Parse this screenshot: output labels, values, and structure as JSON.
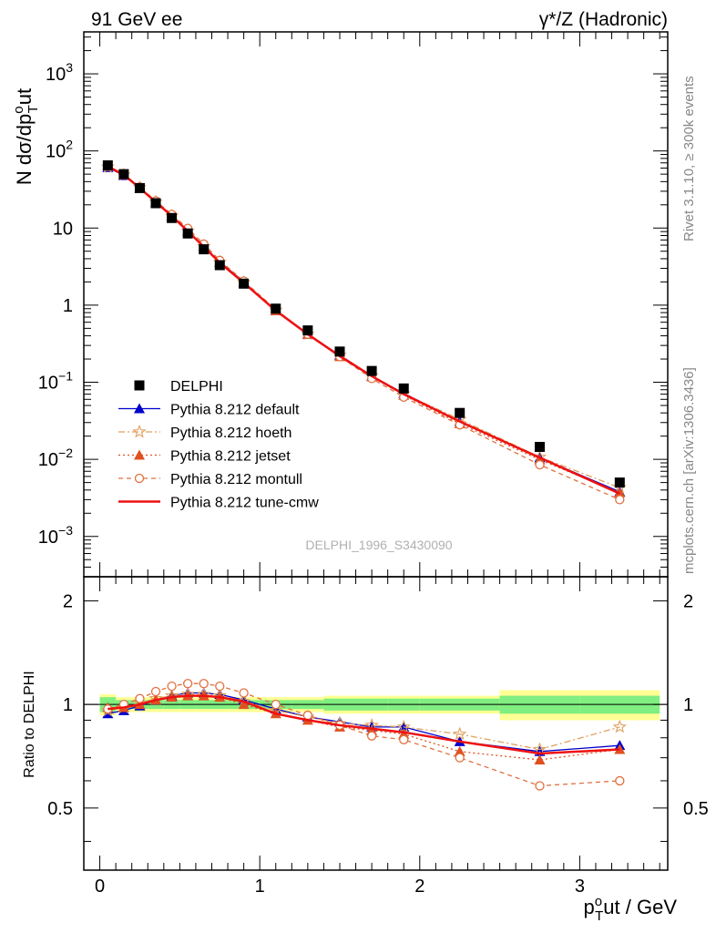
{
  "header": {
    "left": "91 GeV ee",
    "right": "γ*/Z (Hadronic)"
  },
  "side_labels": {
    "top": "Rivet 3.1.10, ≥ 300k events",
    "bottom": "mcplots.cern.ch [arXiv:1306.3436]"
  },
  "watermark": "DELPHI_1996_S3430090",
  "axes": {
    "ylabel_main": "N dσ/dp",
    "ylabel_main_sub": "T",
    "ylabel_main_sup": "o",
    "ylabel_main_tail": "ut",
    "ylabel_ratio": "Ratio to DELPHI",
    "xlabel": "p",
    "xlabel_sup": "o",
    "xlabel_sub": "T",
    "xlabel_tail": "ut / GeV",
    "x_ticks": [
      "0",
      "1",
      "2",
      "3"
    ],
    "main_y_ticks": [
      {
        "base": "10",
        "exp": "3",
        "value": 1000
      },
      {
        "base": "10",
        "exp": "2",
        "value": 100
      },
      {
        "base": "10",
        "exp": "",
        "value": 10
      },
      {
        "base": "1",
        "exp": "",
        "value": 1
      },
      {
        "base": "10",
        "exp": "−1",
        "value": 0.1
      },
      {
        "base": "10",
        "exp": "−2",
        "value": 0.01
      },
      {
        "base": "10",
        "exp": "−3",
        "value": 0.001
      }
    ],
    "ratio_y_ticks": [
      {
        "label": "2",
        "value": 2
      },
      {
        "label": "1",
        "value": 1
      },
      {
        "label": "0.5",
        "value": 0.5
      }
    ]
  },
  "legend": [
    {
      "label": "DELPHI",
      "color": "#000000",
      "style": "data"
    },
    {
      "label": "Pythia 8.212 default",
      "color": "#0000cc",
      "style": "default"
    },
    {
      "label": "Pythia 8.212 hoeth",
      "color": "#e0a060",
      "style": "hoeth"
    },
    {
      "label": "Pythia 8.212 jetset",
      "color": "#e05020",
      "style": "jetset"
    },
    {
      "label": "Pythia 8.212 montull",
      "color": "#e07040",
      "style": "montull"
    },
    {
      "label": "Pythia 8.212 tune-cmw",
      "color": "#ee1111",
      "style": "cmw"
    }
  ],
  "chart_data": {
    "type": "line",
    "title": "γ*/Z (Hadronic)",
    "xlabel": "p_T^out / GeV",
    "ylabel": "N dσ/dp_T^out",
    "xlim": [
      -0.1,
      3.55
    ],
    "ylim_main": [
      0.0003,
      3500
    ],
    "yscale_main": "log",
    "ylim_ratio": [
      0.33,
      2.35
    ],
    "yscale_ratio": "log",
    "x": [
      0.05,
      0.15,
      0.25,
      0.35,
      0.45,
      0.55,
      0.65,
      0.75,
      0.9,
      1.1,
      1.3,
      1.5,
      1.7,
      1.9,
      2.25,
      2.75,
      3.25
    ],
    "data": {
      "name": "DELPHI",
      "values": [
        65,
        50,
        33,
        21,
        13.5,
        8.5,
        5.3,
        3.3,
        1.9,
        0.9,
        0.47,
        0.25,
        0.14,
        0.083,
        0.04,
        0.0145,
        0.005
      ],
      "band_inner": [
        0.05,
        0.03,
        0.03,
        0.03,
        0.03,
        0.03,
        0.03,
        0.03,
        0.03,
        0.03,
        0.03,
        0.04,
        0.04,
        0.04,
        0.04,
        0.06,
        0.06
      ],
      "band_outer": [
        0.07,
        0.05,
        0.05,
        0.05,
        0.05,
        0.05,
        0.05,
        0.05,
        0.05,
        0.05,
        0.05,
        0.06,
        0.06,
        0.06,
        0.06,
        0.1,
        0.1
      ],
      "bin_edges": [
        0,
        0.1,
        0.2,
        0.3,
        0.4,
        0.5,
        0.6,
        0.7,
        0.8,
        1.0,
        1.2,
        1.4,
        1.6,
        1.8,
        2.0,
        2.5,
        3.0,
        3.5
      ]
    },
    "series": [
      {
        "name": "Pythia 8.212 default",
        "values": [
          61,
          48,
          33,
          21.5,
          14.2,
          9.2,
          5.8,
          3.65,
          2.0,
          0.85,
          0.42,
          0.225,
          0.12,
          0.072,
          0.031,
          0.0105,
          0.0038
        ],
        "ratio": [
          0.94,
          0.96,
          0.99,
          1.03,
          1.06,
          1.08,
          1.08,
          1.07,
          1.03,
          0.97,
          0.92,
          0.89,
          0.86,
          0.86,
          0.78,
          0.73,
          0.76
        ]
      },
      {
        "name": "Pythia 8.212 hoeth",
        "values": [
          62,
          49,
          33.5,
          21.8,
          14.3,
          9.2,
          5.75,
          3.6,
          1.97,
          0.86,
          0.42,
          0.225,
          0.122,
          0.071,
          0.033,
          0.0107,
          0.0043
        ],
        "ratio": [
          0.96,
          0.98,
          1.01,
          1.04,
          1.06,
          1.07,
          1.07,
          1.06,
          1.02,
          0.96,
          0.92,
          0.88,
          0.87,
          0.86,
          0.82,
          0.74,
          0.86
        ]
      },
      {
        "name": "Pythia 8.212 jetset",
        "values": [
          64,
          49,
          33,
          21.5,
          14.3,
          9.2,
          5.7,
          3.55,
          1.95,
          0.85,
          0.42,
          0.215,
          0.118,
          0.068,
          0.029,
          0.0099,
          0.0037
        ],
        "ratio": [
          0.98,
          0.98,
          1.0,
          1.03,
          1.05,
          1.06,
          1.06,
          1.05,
          1.0,
          0.94,
          0.9,
          0.86,
          0.84,
          0.82,
          0.73,
          0.69,
          0.74
        ]
      },
      {
        "name": "Pythia 8.212 montull",
        "values": [
          63,
          50,
          34,
          22.5,
          15,
          9.9,
          6.2,
          3.8,
          2.05,
          0.88,
          0.42,
          0.215,
          0.112,
          0.064,
          0.028,
          0.0085,
          0.003
        ],
        "ratio": [
          0.97,
          1.0,
          1.04,
          1.09,
          1.13,
          1.15,
          1.15,
          1.13,
          1.08,
          1.0,
          0.93,
          0.87,
          0.81,
          0.79,
          0.7,
          0.58,
          0.6
        ]
      },
      {
        "name": "Pythia 8.212 tune-cmw",
        "values": [
          63,
          49,
          33,
          21.7,
          14.3,
          9.1,
          5.7,
          3.55,
          1.95,
          0.85,
          0.42,
          0.218,
          0.12,
          0.07,
          0.031,
          0.0105,
          0.0036
        ],
        "ratio": [
          0.97,
          0.98,
          1.0,
          1.03,
          1.05,
          1.06,
          1.06,
          1.05,
          1.02,
          0.94,
          0.9,
          0.87,
          0.85,
          0.83,
          0.78,
          0.72,
          0.74
        ]
      }
    ]
  }
}
